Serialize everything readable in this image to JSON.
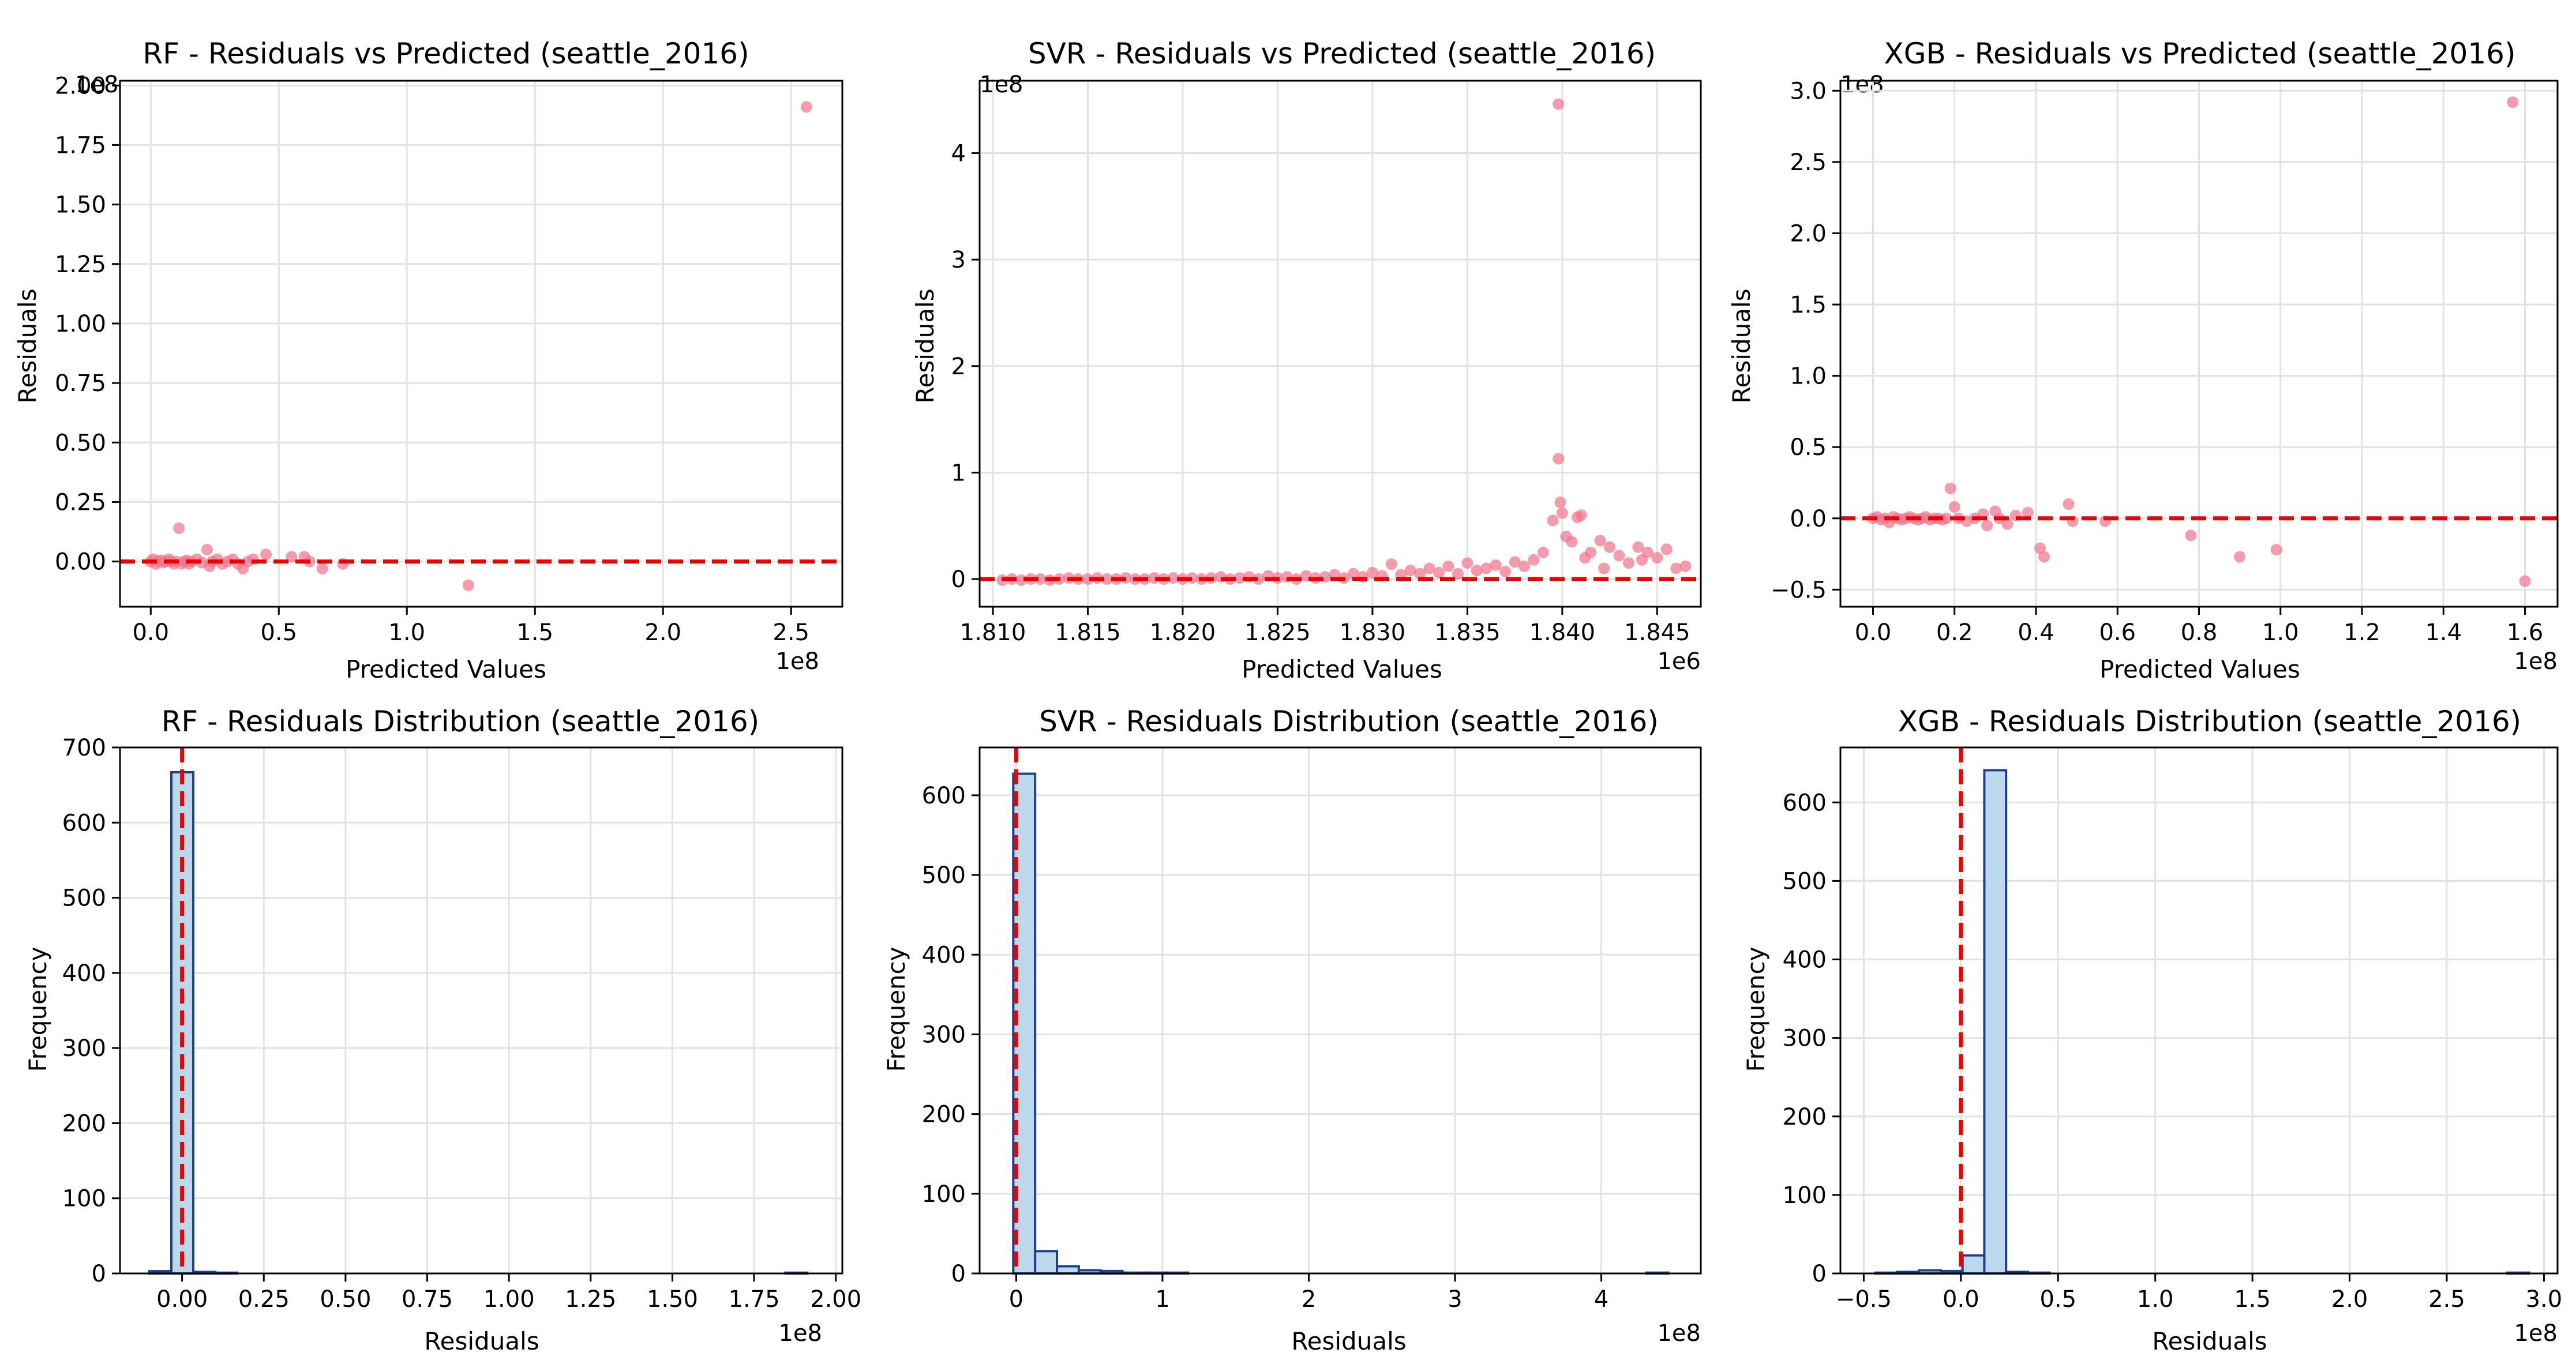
{
  "figure": {
    "background": "#ffffff",
    "scatter_color": "#f0768d",
    "hist_fill": "#bcd9ec",
    "hist_edge": "#1f3f8c",
    "zero_line_color": "#ee0000",
    "grid_color": "#e2e2e2"
  },
  "chart_data": [
    {
      "id": "rf-scatter",
      "type": "scatter",
      "title": "RF - Residuals vs Predicted (seattle_2016)",
      "xlabel": "Predicted Values",
      "ylabel": "Residuals",
      "x_offset": "1e8",
      "y_offset": "1e8",
      "xlim": [
        -0.12,
        2.7
      ],
      "ylim": [
        -0.19,
        2.02
      ],
      "xticks": [
        0.0,
        0.5,
        1.0,
        1.5,
        2.0,
        2.5
      ],
      "xtick_labels": [
        "0.0",
        "0.5",
        "1.0",
        "1.5",
        "2.0",
        "2.5"
      ],
      "yticks": [
        0.0,
        0.25,
        0.5,
        0.75,
        1.0,
        1.25,
        1.5,
        1.75,
        2.0
      ],
      "ytick_labels": [
        "0.00",
        "0.25",
        "0.50",
        "0.75",
        "1.00",
        "1.25",
        "1.50",
        "1.75",
        "2.00"
      ],
      "grid": true,
      "zero_line": 0,
      "points": [
        [
          0.0,
          0.0
        ],
        [
          0.01,
          0.01
        ],
        [
          0.02,
          -0.01
        ],
        [
          0.03,
          0.0
        ],
        [
          0.04,
          0.005
        ],
        [
          0.05,
          -0.005
        ],
        [
          0.06,
          0.0
        ],
        [
          0.07,
          0.01
        ],
        [
          0.08,
          0.0
        ],
        [
          0.09,
          -0.01
        ],
        [
          0.1,
          0.0
        ],
        [
          0.11,
          0.14
        ],
        [
          0.12,
          -0.01
        ],
        [
          0.13,
          0.0
        ],
        [
          0.14,
          0.005
        ],
        [
          0.15,
          -0.01
        ],
        [
          0.16,
          0.0
        ],
        [
          0.18,
          0.01
        ],
        [
          0.2,
          -0.005
        ],
        [
          0.22,
          0.05
        ],
        [
          0.23,
          -0.02
        ],
        [
          0.24,
          0.0
        ],
        [
          0.26,
          0.01
        ],
        [
          0.28,
          -0.01
        ],
        [
          0.3,
          0.0
        ],
        [
          0.32,
          0.01
        ],
        [
          0.34,
          -0.01
        ],
        [
          0.36,
          -0.03
        ],
        [
          0.38,
          0.0
        ],
        [
          0.4,
          0.01
        ],
        [
          0.45,
          0.03
        ],
        [
          0.55,
          0.02
        ],
        [
          0.6,
          0.02
        ],
        [
          0.62,
          0.0
        ],
        [
          0.67,
          -0.03
        ],
        [
          0.75,
          -0.01
        ],
        [
          1.24,
          -0.1
        ],
        [
          2.56,
          1.91
        ]
      ]
    },
    {
      "id": "svr-scatter",
      "type": "scatter",
      "title": "SVR - Residuals vs Predicted (seattle_2016)",
      "xlabel": "Predicted Values",
      "ylabel": "Residuals",
      "x_offset": "1e6",
      "y_offset": "1e8",
      "xlim": [
        1.8093,
        1.8473
      ],
      "ylim": [
        -0.26,
        4.68
      ],
      "xticks": [
        1.81,
        1.815,
        1.82,
        1.825,
        1.83,
        1.835,
        1.84,
        1.845
      ],
      "xtick_labels": [
        "1.810",
        "1.815",
        "1.820",
        "1.825",
        "1.830",
        "1.835",
        "1.840",
        "1.845"
      ],
      "yticks": [
        0,
        1,
        2,
        3,
        4
      ],
      "ytick_labels": [
        "0",
        "1",
        "2",
        "3",
        "4"
      ],
      "grid": true,
      "zero_line": 0,
      "points": [
        [
          1.8105,
          -0.01
        ],
        [
          1.811,
          0.0
        ],
        [
          1.8115,
          -0.01
        ],
        [
          1.812,
          0.0
        ],
        [
          1.8125,
          0.0
        ],
        [
          1.813,
          -0.01
        ],
        [
          1.8135,
          0.0
        ],
        [
          1.814,
          0.01
        ],
        [
          1.8145,
          0.0
        ],
        [
          1.815,
          0.0
        ],
        [
          1.8155,
          0.01
        ],
        [
          1.816,
          0.0
        ],
        [
          1.8165,
          0.0
        ],
        [
          1.817,
          0.01
        ],
        [
          1.8175,
          0.0
        ],
        [
          1.818,
          0.0
        ],
        [
          1.8185,
          0.01
        ],
        [
          1.819,
          0.0
        ],
        [
          1.8195,
          0.01
        ],
        [
          1.82,
          0.0
        ],
        [
          1.8205,
          0.01
        ],
        [
          1.821,
          0.0
        ],
        [
          1.8215,
          0.01
        ],
        [
          1.822,
          0.02
        ],
        [
          1.8225,
          0.0
        ],
        [
          1.823,
          0.01
        ],
        [
          1.8235,
          0.02
        ],
        [
          1.824,
          0.0
        ],
        [
          1.8245,
          0.03
        ],
        [
          1.825,
          0.01
        ],
        [
          1.8255,
          0.02
        ],
        [
          1.826,
          0.0
        ],
        [
          1.8265,
          0.03
        ],
        [
          1.827,
          0.01
        ],
        [
          1.8275,
          0.02
        ],
        [
          1.828,
          0.04
        ],
        [
          1.8285,
          0.01
        ],
        [
          1.829,
          0.05
        ],
        [
          1.8295,
          0.02
        ],
        [
          1.83,
          0.06
        ],
        [
          1.8305,
          0.03
        ],
        [
          1.831,
          0.14
        ],
        [
          1.8315,
          0.04
        ],
        [
          1.832,
          0.08
        ],
        [
          1.8325,
          0.05
        ],
        [
          1.833,
          0.1
        ],
        [
          1.8335,
          0.06
        ],
        [
          1.834,
          0.12
        ],
        [
          1.8345,
          0.05
        ],
        [
          1.835,
          0.15
        ],
        [
          1.8355,
          0.08
        ],
        [
          1.836,
          0.1
        ],
        [
          1.8365,
          0.13
        ],
        [
          1.837,
          0.07
        ],
        [
          1.8375,
          0.16
        ],
        [
          1.838,
          0.12
        ],
        [
          1.8385,
          0.18
        ],
        [
          1.839,
          0.25
        ],
        [
          1.8395,
          0.55
        ],
        [
          1.8398,
          4.46
        ],
        [
          1.8398,
          1.13
        ],
        [
          1.8399,
          0.72
        ],
        [
          1.84,
          0.62
        ],
        [
          1.8402,
          0.4
        ],
        [
          1.8405,
          0.35
        ],
        [
          1.8408,
          0.58
        ],
        [
          1.841,
          0.6
        ],
        [
          1.8412,
          0.2
        ],
        [
          1.8415,
          0.25
        ],
        [
          1.842,
          0.36
        ],
        [
          1.8422,
          0.1
        ],
        [
          1.8425,
          0.3
        ],
        [
          1.843,
          0.22
        ],
        [
          1.8435,
          0.15
        ],
        [
          1.844,
          0.3
        ],
        [
          1.8442,
          0.18
        ],
        [
          1.8445,
          0.25
        ],
        [
          1.845,
          0.2
        ],
        [
          1.8455,
          0.28
        ],
        [
          1.846,
          0.1
        ],
        [
          1.8465,
          0.12
        ]
      ]
    },
    {
      "id": "xgb-scatter",
      "type": "scatter",
      "title": "XGB - Residuals vs Predicted (seattle_2016)",
      "xlabel": "Predicted Values",
      "ylabel": "Residuals",
      "x_offset": "1e8",
      "y_offset": "1e8",
      "xlim": [
        -0.08,
        1.68
      ],
      "ylim": [
        -0.62,
        3.07
      ],
      "xticks": [
        0.0,
        0.2,
        0.4,
        0.6,
        0.8,
        1.0,
        1.2,
        1.4,
        1.6
      ],
      "xtick_labels": [
        "0.0",
        "0.2",
        "0.4",
        "0.6",
        "0.8",
        "1.0",
        "1.2",
        "1.4",
        "1.6"
      ],
      "yticks": [
        -0.5,
        0.0,
        0.5,
        1.0,
        1.5,
        2.0,
        2.5,
        3.0
      ],
      "ytick_labels": [
        "−0.5",
        "0.0",
        "0.5",
        "1.0",
        "1.5",
        "2.0",
        "2.5",
        "3.0"
      ],
      "grid": true,
      "zero_line": 0,
      "points": [
        [
          0.0,
          0.0
        ],
        [
          0.01,
          0.01
        ],
        [
          0.02,
          -0.01
        ],
        [
          0.03,
          0.0
        ],
        [
          0.04,
          -0.03
        ],
        [
          0.05,
          0.01
        ],
        [
          0.06,
          0.0
        ],
        [
          0.07,
          -0.01
        ],
        [
          0.08,
          0.0
        ],
        [
          0.09,
          0.01
        ],
        [
          0.1,
          0.0
        ],
        [
          0.11,
          -0.01
        ],
        [
          0.12,
          0.0
        ],
        [
          0.13,
          0.01
        ],
        [
          0.14,
          -0.01
        ],
        [
          0.15,
          0.0
        ],
        [
          0.16,
          0.0
        ],
        [
          0.17,
          -0.01
        ],
        [
          0.18,
          0.0
        ],
        [
          0.19,
          0.21
        ],
        [
          0.2,
          0.08
        ],
        [
          0.21,
          0.0
        ],
        [
          0.23,
          -0.02
        ],
        [
          0.25,
          0.0
        ],
        [
          0.27,
          0.03
        ],
        [
          0.28,
          -0.05
        ],
        [
          0.3,
          0.05
        ],
        [
          0.31,
          0.0
        ],
        [
          0.33,
          -0.04
        ],
        [
          0.35,
          0.02
        ],
        [
          0.38,
          0.04
        ],
        [
          0.41,
          -0.21
        ],
        [
          0.42,
          -0.27
        ],
        [
          0.48,
          0.1
        ],
        [
          0.49,
          -0.02
        ],
        [
          0.57,
          -0.02
        ],
        [
          0.78,
          -0.12
        ],
        [
          0.9,
          -0.27
        ],
        [
          0.99,
          -0.22
        ],
        [
          1.57,
          2.92
        ],
        [
          1.6,
          -0.44
        ]
      ]
    },
    {
      "id": "rf-hist",
      "type": "bar",
      "title": "RF - Residuals Distribution (seattle_2016)",
      "xlabel": "Residuals",
      "ylabel": "Frequency",
      "x_offset": "1e8",
      "xlim": [
        -0.19,
        2.02
      ],
      "ylim": [
        0,
        700
      ],
      "xticks": [
        0.0,
        0.25,
        0.5,
        0.75,
        1.0,
        1.25,
        1.5,
        1.75,
        2.0
      ],
      "xtick_labels": [
        "0.00",
        "0.25",
        "0.50",
        "0.75",
        "1.00",
        "1.25",
        "1.50",
        "1.75",
        "2.00"
      ],
      "yticks": [
        0,
        100,
        200,
        300,
        400,
        500,
        600,
        700
      ],
      "ytick_labels": [
        "0",
        "100",
        "200",
        "300",
        "400",
        "500",
        "600",
        "700"
      ],
      "grid": true,
      "zero_line": 0,
      "bin_start": -0.1,
      "bin_width": 0.0671,
      "counts": [
        3,
        667,
        2,
        1,
        0,
        0,
        0,
        0,
        0,
        0,
        0,
        0,
        0,
        0,
        0,
        0,
        0,
        0,
        0,
        0,
        0,
        0,
        0,
        0,
        0,
        0,
        0,
        0,
        0,
        1
      ]
    },
    {
      "id": "svr-hist",
      "type": "bar",
      "title": "SVR - Residuals Distribution (seattle_2016)",
      "xlabel": "Residuals",
      "ylabel": "Frequency",
      "x_offset": "1e8",
      "xlim": [
        -0.25,
        4.68
      ],
      "ylim": [
        0,
        660
      ],
      "xticks": [
        0,
        1,
        2,
        3,
        4
      ],
      "xtick_labels": [
        "0",
        "1",
        "2",
        "3",
        "4"
      ],
      "yticks": [
        0,
        100,
        200,
        300,
        400,
        500,
        600
      ],
      "ytick_labels": [
        "0",
        "100",
        "200",
        "300",
        "400",
        "500",
        "600"
      ],
      "grid": true,
      "zero_line": 0,
      "bin_start": -0.02,
      "bin_width": 0.1493,
      "counts": [
        627,
        28,
        9,
        4,
        3,
        1,
        1,
        1,
        0,
        0,
        0,
        0,
        0,
        0,
        0,
        0,
        0,
        0,
        0,
        0,
        0,
        0,
        0,
        0,
        0,
        0,
        0,
        0,
        0,
        1
      ]
    },
    {
      "id": "xgb-hist",
      "type": "bar",
      "title": "XGB - Residuals Distribution (seattle_2016)",
      "xlabel": "Residuals",
      "ylabel": "Frequency",
      "x_offset": "1e8",
      "xlim": [
        -0.62,
        3.07
      ],
      "ylim": [
        0,
        670
      ],
      "xticks": [
        -0.5,
        0.0,
        0.5,
        1.0,
        1.5,
        2.0,
        2.5,
        3.0
      ],
      "xtick_labels": [
        "−0.5",
        "0.0",
        "0.5",
        "1.0",
        "1.5",
        "2.0",
        "2.5",
        "3.0"
      ],
      "yticks": [
        0,
        100,
        200,
        300,
        400,
        500,
        600
      ],
      "ytick_labels": [
        "0",
        "100",
        "200",
        "300",
        "400",
        "500",
        "600"
      ],
      "grid": true,
      "zero_line": 0,
      "bin_start": -0.44,
      "bin_width": 0.1121,
      "counts": [
        1,
        2,
        4,
        3,
        23,
        641,
        2,
        1,
        0,
        0,
        0,
        0,
        0,
        0,
        0,
        0,
        0,
        0,
        0,
        0,
        0,
        0,
        0,
        0,
        0,
        0,
        0,
        0,
        0,
        1
      ]
    }
  ]
}
